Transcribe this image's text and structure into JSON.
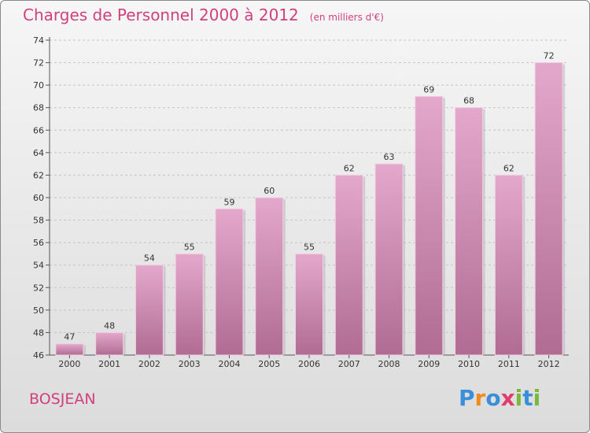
{
  "header": {
    "title": "Charges de Personnel 2000 à 2012",
    "subtitle": "(en milliers d'€)"
  },
  "footer": {
    "place": "BOSJEAN",
    "logo": "Proxiti"
  },
  "colors": {
    "accent": "#d0407f",
    "bar_top": "#e4a8cc",
    "bar_bottom": "#b06c93"
  },
  "chart_data": {
    "type": "bar",
    "categories": [
      "2000",
      "2001",
      "2002",
      "2003",
      "2004",
      "2005",
      "2006",
      "2007",
      "2008",
      "2009",
      "2010",
      "2011",
      "2012"
    ],
    "values": [
      47,
      48,
      54,
      55,
      59,
      60,
      55,
      62,
      63,
      69,
      68,
      62,
      72
    ],
    "title": "Charges de Personnel 2000 à 2012",
    "ylabel": "",
    "xlabel": "",
    "ylim": [
      46,
      74
    ],
    "yticks": [
      46,
      48,
      50,
      52,
      54,
      56,
      58,
      60,
      62,
      64,
      66,
      68,
      70,
      72,
      74
    ],
    "grid": true
  }
}
